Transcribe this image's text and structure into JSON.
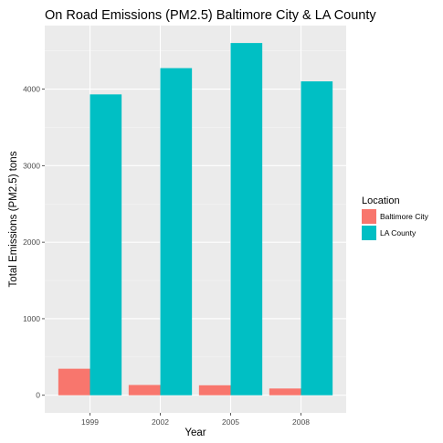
{
  "chart_data": {
    "type": "bar",
    "title": "On Road Emissions (PM2.5) Baltimore City & LA County",
    "xlabel": "Year",
    "ylabel": "Total Emissions (PM2.5) tons",
    "categories": [
      "1999",
      "2002",
      "2005",
      "2008"
    ],
    "series": [
      {
        "name": "Baltimore City",
        "color": "#F8766D",
        "values": [
          346.8,
          134.3,
          130.4,
          88.3
        ]
      },
      {
        "name": "LA County",
        "color": "#00BFC4",
        "values": [
          3931,
          4274,
          4602,
          4101
        ]
      }
    ],
    "ylim": [
      -230,
      4830
    ],
    "yticks": [
      0,
      1000,
      2000,
      3000,
      4000
    ],
    "grid": true,
    "legend": {
      "title": "Location",
      "placement": "right"
    }
  }
}
